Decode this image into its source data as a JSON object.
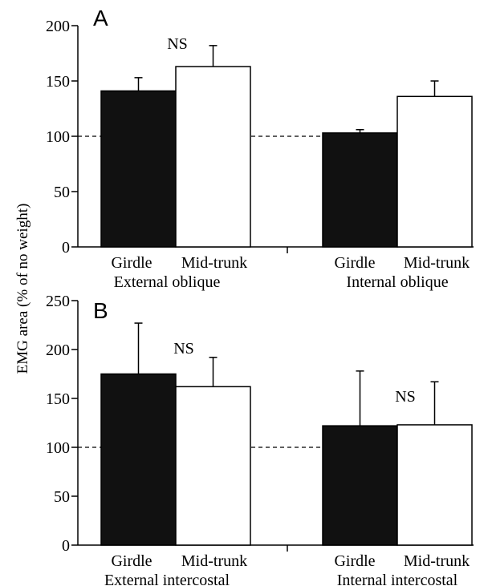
{
  "ylabel": "EMG area (% of no weight)",
  "chart_data": [
    {
      "type": "bar",
      "panel_label": "A",
      "ylim": [
        0,
        200
      ],
      "yticks": [
        0,
        50,
        100,
        150,
        200
      ],
      "reference_line": 100,
      "groups": [
        {
          "label": "External oblique",
          "significance": "NS",
          "bars": [
            {
              "category": "Girdle",
              "value": 141,
              "error": 12,
              "fill": "black"
            },
            {
              "category": "Mid-trunk",
              "value": 163,
              "error": 19,
              "fill": "white"
            }
          ]
        },
        {
          "label": "Internal oblique",
          "significance": "",
          "bars": [
            {
              "category": "Girdle",
              "value": 103,
              "error": 3,
              "fill": "black"
            },
            {
              "category": "Mid-trunk",
              "value": 136,
              "error": 14,
              "fill": "white"
            }
          ]
        }
      ]
    },
    {
      "type": "bar",
      "panel_label": "B",
      "ylim": [
        0,
        250
      ],
      "yticks": [
        0,
        50,
        100,
        150,
        200,
        250
      ],
      "reference_line": 100,
      "groups": [
        {
          "label": "External intercostal",
          "significance": "NS",
          "bars": [
            {
              "category": "Girdle",
              "value": 175,
              "error": 52,
              "fill": "black"
            },
            {
              "category": "Mid-trunk",
              "value": 162,
              "error": 30,
              "fill": "white"
            }
          ]
        },
        {
          "label": "Internal intercostal",
          "significance": "NS",
          "bars": [
            {
              "category": "Girdle",
              "value": 122,
              "error": 56,
              "fill": "black"
            },
            {
              "category": "Mid-trunk",
              "value": 123,
              "error": 44,
              "fill": "white"
            }
          ]
        }
      ]
    }
  ]
}
